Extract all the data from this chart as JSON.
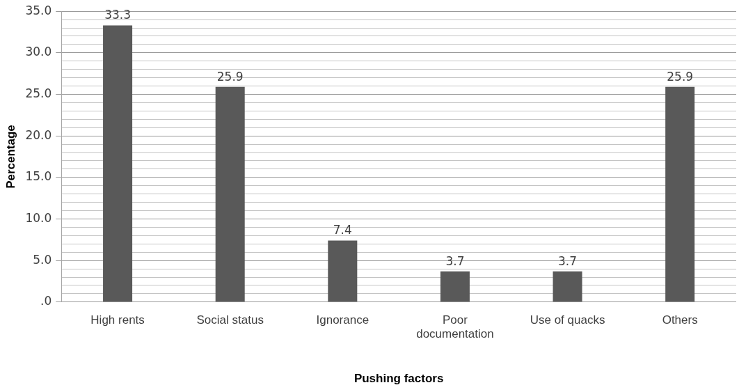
{
  "chart_data": {
    "type": "bar",
    "xlabel": "Pushing factors",
    "ylabel": "Percentage",
    "categories": [
      "High rents",
      "Social status",
      "Ignorance",
      "Poor documentation",
      "Use of quacks",
      "Others"
    ],
    "values": [
      33.3,
      25.9,
      7.4,
      3.7,
      3.7,
      25.9
    ],
    "color": "#595959",
    "ylim": [
      0,
      35
    ],
    "yticks": [
      {
        "value": 0,
        "label": ".0"
      },
      {
        "value": 1,
        "label": null
      },
      {
        "value": 2,
        "label": null
      },
      {
        "value": 3,
        "label": null
      },
      {
        "value": 4,
        "label": null
      },
      {
        "value": 5,
        "label": "5.0"
      },
      {
        "value": 6,
        "label": null
      },
      {
        "value": 7,
        "label": null
      },
      {
        "value": 8,
        "label": null
      },
      {
        "value": 9,
        "label": null
      },
      {
        "value": 10,
        "label": "10.0"
      },
      {
        "value": 11,
        "label": null
      },
      {
        "value": 12,
        "label": null
      },
      {
        "value": 13,
        "label": null
      },
      {
        "value": 14,
        "label": null
      },
      {
        "value": 15,
        "label": "15.0"
      },
      {
        "value": 16,
        "label": null
      },
      {
        "value": 17,
        "label": null
      },
      {
        "value": 18,
        "label": null
      },
      {
        "value": 19,
        "label": null
      },
      {
        "value": 20,
        "label": "20.0"
      },
      {
        "value": 21,
        "label": null
      },
      {
        "value": 22,
        "label": null
      },
      {
        "value": 23,
        "label": null
      },
      {
        "value": 24,
        "label": null
      },
      {
        "value": 25,
        "label": "25.0"
      },
      {
        "value": 26,
        "label": null
      },
      {
        "value": 27,
        "label": null
      },
      {
        "value": 28,
        "label": null
      },
      {
        "value": 29,
        "label": null
      },
      {
        "value": 30,
        "label": "30.0"
      },
      {
        "value": 31,
        "label": null
      },
      {
        "value": 32,
        "label": null
      },
      {
        "value": 33,
        "label": null
      },
      {
        "value": 34,
        "label": null
      },
      {
        "value": 35,
        "label": "35.0"
      }
    ],
    "grid": true,
    "data_labels": true
  }
}
